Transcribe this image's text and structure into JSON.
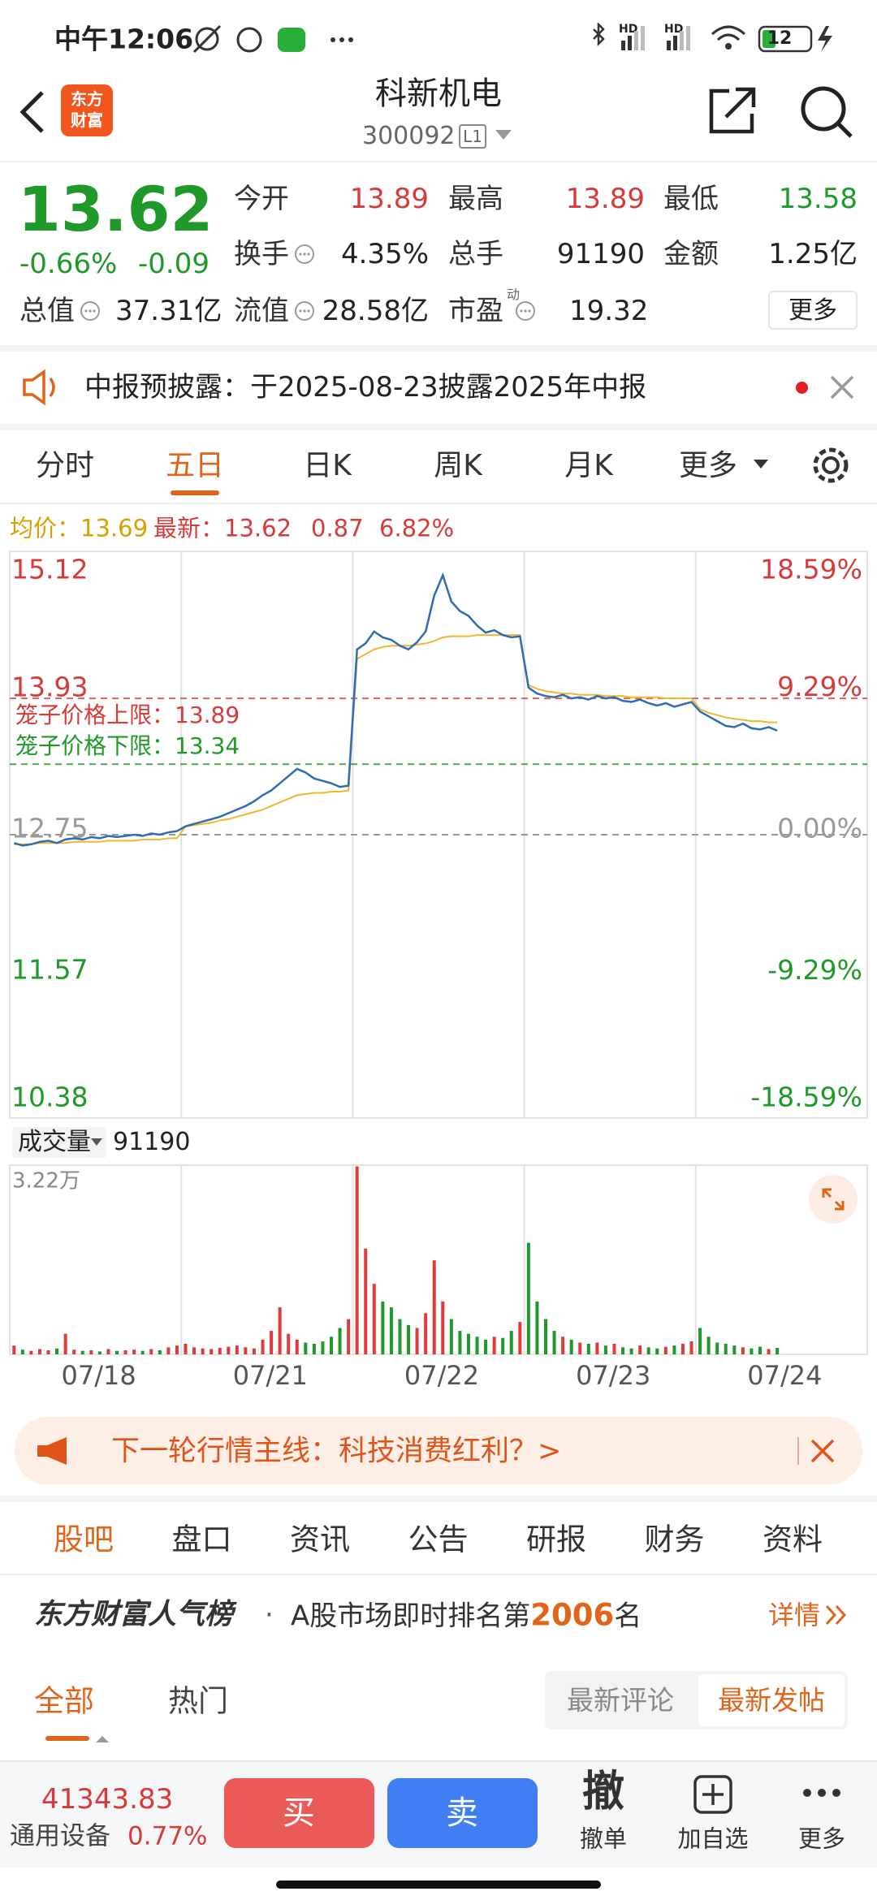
{
  "status_bar": {
    "time": "中午12:06",
    "signal_labels": [
      "HD",
      "HD"
    ],
    "battery": "12"
  },
  "header": {
    "logo": [
      "东方",
      "财富"
    ],
    "title": "科新机电",
    "code": "300092",
    "level": "L1"
  },
  "quote": {
    "price": "13.62",
    "change_pct": "-0.66%",
    "change": "-0.09",
    "rows": [
      [
        {
          "label": "今开",
          "value": "13.89"
        },
        {
          "label": "最高",
          "value": "13.89"
        },
        {
          "label": "最低",
          "value": "13.58"
        }
      ],
      [
        {
          "label": "换手",
          "value": "4.35%"
        },
        {
          "label": "总手",
          "value": "91190"
        },
        {
          "label": "金额",
          "value": "1.25亿"
        }
      ],
      [
        {
          "label": "总值",
          "value": "37.31亿"
        },
        {
          "label": "流值",
          "value": "28.58亿"
        },
        {
          "label": "市盈",
          "sup": "动",
          "value": "19.32"
        }
      ]
    ],
    "more": "更多"
  },
  "notice": "中报预披露：于2025-08-23披露2025年中报",
  "tabs": [
    "分时",
    "五日",
    "日K",
    "周K",
    "月K",
    "更多"
  ],
  "chart_header": {
    "avg_label": "均价：",
    "avg": "13.69",
    "last_label": "最新：",
    "last": "13.62",
    "change": "0.87",
    "change_pct": "6.82%"
  },
  "chart_data": {
    "type": "line",
    "days": [
      "07/18",
      "07/21",
      "07/22",
      "07/23",
      "07/24"
    ],
    "series": [
      {
        "name": "最新",
        "color": "#2e6db4",
        "values": [
          12.68,
          12.66,
          12.67,
          12.69,
          12.7,
          12.68,
          12.71,
          12.72,
          12.71,
          12.73,
          12.72,
          12.74,
          12.73,
          12.74,
          12.75,
          12.74,
          12.76,
          12.75,
          12.77,
          12.78,
          12.82,
          12.84,
          12.86,
          12.88,
          12.9,
          12.93,
          12.96,
          12.99,
          13.03,
          13.08,
          13.12,
          13.18,
          13.24,
          13.3,
          13.27,
          13.22,
          13.2,
          13.18,
          13.15,
          13.16,
          14.3,
          14.35,
          14.45,
          14.4,
          14.38,
          14.33,
          14.3,
          14.36,
          14.45,
          14.75,
          14.92,
          14.7,
          14.62,
          14.58,
          14.5,
          14.44,
          14.46,
          14.42,
          14.4,
          14.41,
          13.98,
          13.93,
          13.91,
          13.9,
          13.92,
          13.89,
          13.9,
          13.88,
          13.91,
          13.89,
          13.9,
          13.87,
          13.86,
          13.88,
          13.85,
          13.83,
          13.85,
          13.82,
          13.84,
          13.86,
          13.78,
          13.74,
          13.7,
          13.66,
          13.65,
          13.68,
          13.64,
          13.63,
          13.65,
          13.62
        ]
      },
      {
        "name": "均价",
        "color": "#f0b72f",
        "values": [
          12.67,
          12.67,
          12.67,
          12.68,
          12.68,
          12.68,
          12.68,
          12.69,
          12.69,
          12.69,
          12.69,
          12.7,
          12.7,
          12.7,
          12.7,
          12.71,
          12.71,
          12.71,
          12.72,
          12.72,
          12.82,
          12.83,
          12.84,
          12.85,
          12.87,
          12.88,
          12.9,
          12.92,
          12.94,
          12.96,
          12.99,
          13.02,
          13.05,
          13.08,
          13.09,
          13.1,
          13.1,
          13.11,
          13.11,
          13.12,
          14.22,
          14.26,
          14.3,
          14.32,
          14.33,
          14.33,
          14.33,
          14.34,
          14.35,
          14.37,
          14.4,
          14.41,
          14.41,
          14.41,
          14.42,
          14.42,
          14.42,
          14.42,
          14.42,
          14.42,
          14.0,
          13.97,
          13.95,
          13.94,
          13.93,
          13.93,
          13.92,
          13.92,
          13.92,
          13.91,
          13.91,
          13.91,
          13.9,
          13.9,
          13.9,
          13.9,
          13.89,
          13.89,
          13.89,
          13.89,
          13.8,
          13.77,
          13.75,
          13.73,
          13.72,
          13.71,
          13.7,
          13.7,
          13.69,
          13.69
        ]
      }
    ],
    "ylim": [
      10.38,
      15.12
    ],
    "yticks": [
      15.12,
      13.93,
      12.75,
      11.57,
      10.38
    ],
    "y2lim": [
      -18.59,
      18.59
    ],
    "y2ticks": [
      {
        "value": 18.59,
        "label": "18.59%"
      },
      {
        "value": 9.29,
        "label": "9.29%"
      },
      {
        "value": 0,
        "label": "0.00%"
      },
      {
        "value": -9.29,
        "label": "-9.29%"
      },
      {
        "value": -18.59,
        "label": "-18.59%"
      }
    ],
    "annotations": [
      {
        "label": "笼子价格上限：",
        "value": 13.89,
        "color": "#d83a3a"
      },
      {
        "label": "笼子价格下限：",
        "value": 13.34,
        "color": "#1f9a2a"
      }
    ],
    "volume": {
      "label": "成交量",
      "total": "91190",
      "ylim": [
        0,
        32200
      ],
      "yticks": [
        {
          "value": 32200,
          "label": "3.22万"
        }
      ],
      "values": [
        1500,
        800,
        600,
        900,
        700,
        1000,
        3500,
        800,
        600,
        700,
        500,
        900,
        600,
        700,
        800,
        600,
        900,
        700,
        1200,
        1500,
        1800,
        1200,
        1000,
        900,
        1100,
        1300,
        1500,
        1200,
        1000,
        2500,
        4000,
        8000,
        3500,
        2500,
        2000,
        1800,
        2200,
        3000,
        4500,
        6000,
        32000,
        18000,
        12000,
        9000,
        8000,
        6000,
        5000,
        4500,
        7000,
        16000,
        9000,
        6000,
        4000,
        3500,
        3000,
        2500,
        3000,
        2800,
        4000,
        5500,
        19000,
        9000,
        6000,
        4000,
        3000,
        2500,
        2000,
        1800,
        2000,
        1500,
        1800,
        1200,
        1000,
        1500,
        1200,
        1000,
        1300,
        1500,
        1800,
        2200,
        4500,
        3000,
        2000,
        1800,
        1500,
        1200,
        1000,
        1300,
        900,
        1100
      ]
    }
  },
  "banner": "下一轮行情主线：科技消费红利？>",
  "section_tabs": [
    "股吧",
    "盘口",
    "资讯",
    "公告",
    "研报",
    "财务",
    "资料"
  ],
  "ranking": {
    "brand": "东方财富人气榜",
    "dot": "·",
    "prefix": "A股市场即时排名第",
    "rank": "2006",
    "suffix": "名",
    "detail": "详情"
  },
  "filter": {
    "tabs": [
      "全部",
      "热门"
    ],
    "sort": [
      "最新评论",
      "最新发帖"
    ]
  },
  "bottom_bar": {
    "index_value": "41343.83",
    "sector": "通用设备",
    "sector_change": "0.77%",
    "buy": "买",
    "sell": "卖",
    "cancel_icon": "撤",
    "cancel": "撤单",
    "watch": "加自选",
    "more": "更多"
  }
}
